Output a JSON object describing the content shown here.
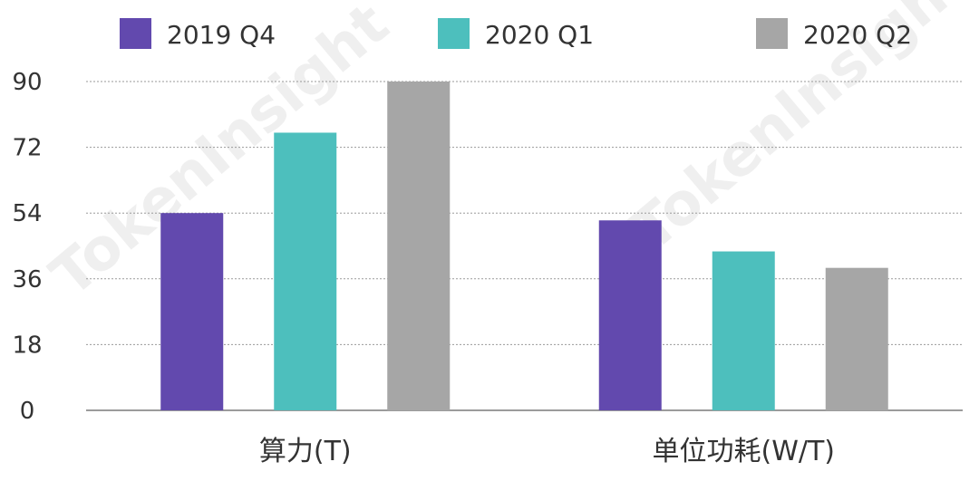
{
  "chart_data": {
    "type": "bar",
    "categories": [
      "算力(T)",
      "单位功耗(W/T)"
    ],
    "series": [
      {
        "name": "2019 Q4",
        "color": "#6249AE",
        "values": [
          54,
          52
        ]
      },
      {
        "name": "2020 Q1",
        "color": "#4DBFBD",
        "values": [
          76,
          43.5
        ]
      },
      {
        "name": "2020 Q2",
        "color": "#A6A6A6",
        "values": [
          90,
          39
        ]
      }
    ],
    "yticks": [
      "0",
      "18",
      "36",
      "54",
      "72",
      "90"
    ],
    "ylim": [
      0,
      90
    ],
    "grid": true,
    "legend_position": "top",
    "watermark": "TokenInsight"
  }
}
